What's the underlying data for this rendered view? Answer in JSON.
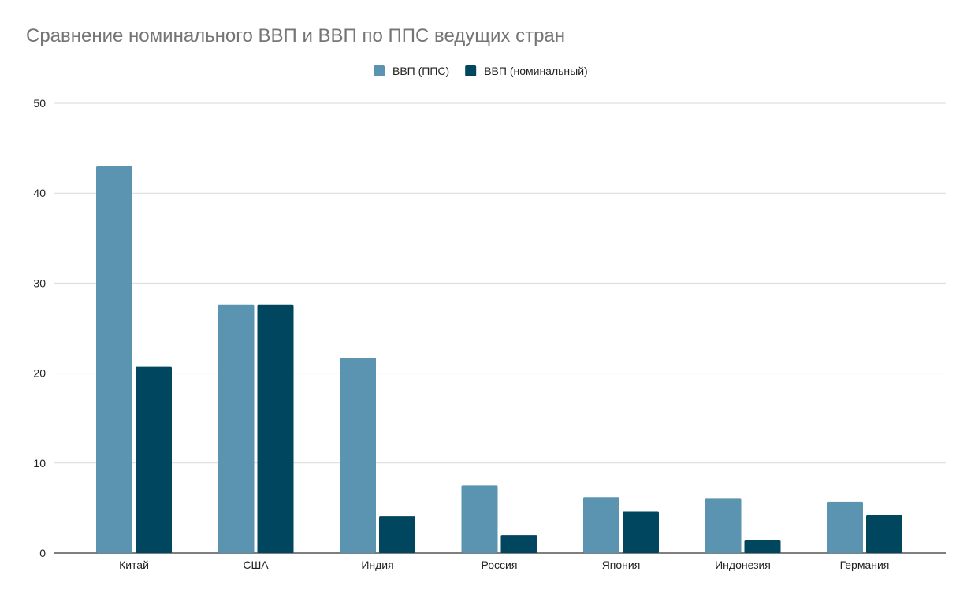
{
  "chart_data": {
    "type": "bar",
    "title": "Сравнение номинального ВВП и ВВП по ППС ведущих стран",
    "xlabel": "",
    "ylabel": "",
    "ylim": [
      0,
      50
    ],
    "yticks": [
      0,
      10,
      20,
      30,
      40,
      50
    ],
    "grid": true,
    "legend_position": "top",
    "categories": [
      "Китай",
      "США",
      "Индия",
      "Россия",
      "Япония",
      "Индонезия",
      "Германия"
    ],
    "series": [
      {
        "name": "ВВП (ППС)",
        "color": "#5b94b1",
        "values": [
          43.0,
          27.6,
          21.7,
          7.5,
          6.2,
          6.1,
          5.7
        ]
      },
      {
        "name": "ВВП (номинальный)",
        "color": "#00465f",
        "values": [
          20.7,
          27.6,
          4.1,
          2.0,
          4.6,
          1.4,
          4.2
        ]
      }
    ]
  }
}
